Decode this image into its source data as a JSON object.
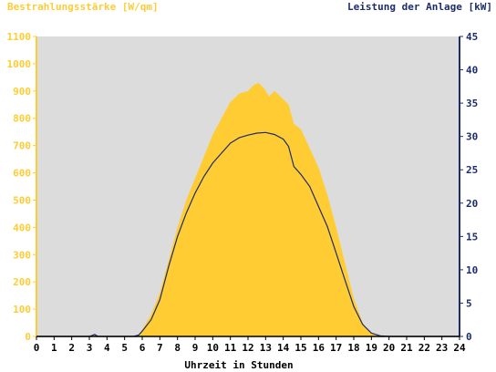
{
  "colors": {
    "left_axis": "#ffcc33",
    "right_axis": "#1c2d6b",
    "plot_bg": "#dcdcdc",
    "area_fill": "#ffcc33",
    "line": "#1c2d6b",
    "x_axis": "#000000"
  },
  "chart_data": {
    "type": "area",
    "title_left": "Bestrahlungsstärke [W/qm]",
    "title_right": "Leistung der Anlage [kW]",
    "xlabel": "Uhrzeit in Stunden",
    "xlim": [
      0,
      24
    ],
    "x_ticks": [
      "0",
      "1",
      "2",
      "3",
      "4",
      "5",
      "6",
      "7",
      "8",
      "9",
      "10",
      "11",
      "12",
      "13",
      "14",
      "15",
      "16",
      "17",
      "18",
      "19",
      "20",
      "21",
      "22",
      "23",
      "24"
    ],
    "y_left": {
      "lim": [
        0,
        1100
      ],
      "ticks": [
        "0",
        "100",
        "200",
        "300",
        "400",
        "500",
        "600",
        "700",
        "800",
        "900",
        "1000",
        "1100"
      ]
    },
    "y_right": {
      "lim": [
        0,
        45
      ],
      "ticks": [
        "0",
        "5",
        "10",
        "15",
        "20",
        "25",
        "30",
        "35",
        "40",
        "45"
      ]
    },
    "grid": false,
    "series": [
      {
        "axis": "left",
        "style": "area",
        "x": [
          0,
          3,
          3.3,
          3.5,
          5.5,
          5.8,
          6,
          6.5,
          7,
          7.5,
          8,
          8.5,
          9,
          9.5,
          10,
          10.5,
          11,
          11.5,
          12,
          12.3,
          12.6,
          12.9,
          13.2,
          13.5,
          14,
          14.3,
          14.6,
          15,
          15.5,
          16,
          16.5,
          17,
          17.5,
          18,
          18.5,
          19,
          19.5,
          20,
          24
        ],
        "y": [
          0,
          0,
          8,
          0,
          0,
          5,
          25,
          80,
          160,
          280,
          400,
          500,
          580,
          660,
          740,
          800,
          860,
          890,
          900,
          920,
          930,
          910,
          880,
          900,
          870,
          850,
          780,
          760,
          690,
          620,
          520,
          400,
          270,
          140,
          50,
          10,
          2,
          0,
          0
        ]
      },
      {
        "axis": "right",
        "style": "line",
        "x": [
          0,
          3,
          3.3,
          3.5,
          5.5,
          5.8,
          6,
          6.5,
          7,
          7.5,
          8,
          8.5,
          9,
          9.5,
          10,
          10.5,
          11,
          11.5,
          12,
          12.5,
          13,
          13.5,
          14,
          14.3,
          14.6,
          15,
          15.5,
          16,
          16.5,
          17,
          17.5,
          18,
          18.5,
          19,
          19.5,
          20,
          24
        ],
        "y": [
          0,
          0,
          0.3,
          0,
          0,
          0.2,
          0.8,
          2.5,
          5.5,
          10.5,
          15,
          18.5,
          21.5,
          24,
          26,
          27.5,
          29,
          29.8,
          30.2,
          30.5,
          30.6,
          30.3,
          29.6,
          28.5,
          25.5,
          24.3,
          22.5,
          19.5,
          16.5,
          12.5,
          8.5,
          4.5,
          1.8,
          0.5,
          0.1,
          0,
          0
        ]
      }
    ]
  }
}
